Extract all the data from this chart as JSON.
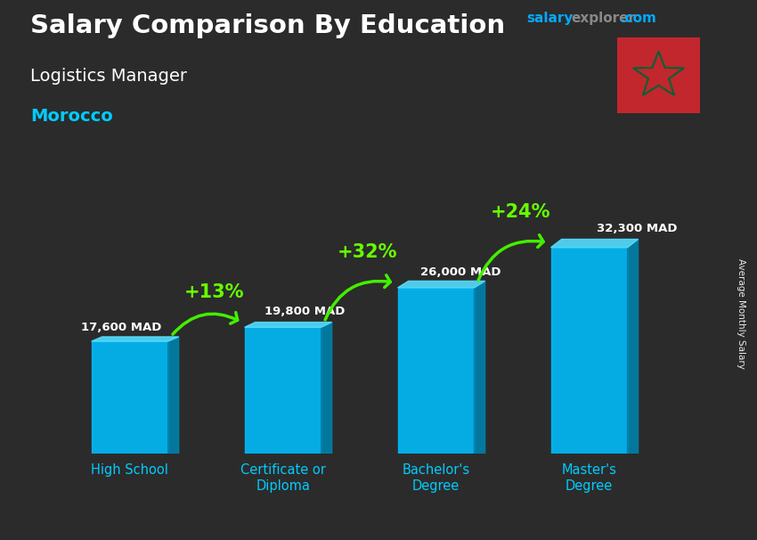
{
  "title_main": "Salary Comparison By Education",
  "title_sub": "Logistics Manager",
  "title_country": "Morocco",
  "categories": [
    "High School",
    "Certificate or\nDiploma",
    "Bachelor's\nDegree",
    "Master's\nDegree"
  ],
  "values": [
    17600,
    19800,
    26000,
    32300
  ],
  "labels": [
    "17,600 MAD",
    "19,800 MAD",
    "26,000 MAD",
    "32,300 MAD"
  ],
  "pct_changes": [
    "+13%",
    "+32%",
    "+24%"
  ],
  "bar_color_front": "#00bfff",
  "bar_color_right": "#0080aa",
  "bar_color_top": "#55ddff",
  "bg_color": "#2b2b2b",
  "title_color": "#ffffff",
  "subtitle_color": "#ffffff",
  "country_color": "#00ccff",
  "label_color": "#ffffff",
  "pct_color": "#66ff00",
  "arrow_color": "#44ee00",
  "ylabel": "Average Monthly Salary",
  "website_salary_color": "#00aaff",
  "website_explorer_color": "#888888",
  "website_com_color": "#00aaff",
  "flag_red": "#c1272d",
  "flag_green": "#006233",
  "label_value_color": "#ffffff",
  "xticklabel_color": "#00ccff"
}
